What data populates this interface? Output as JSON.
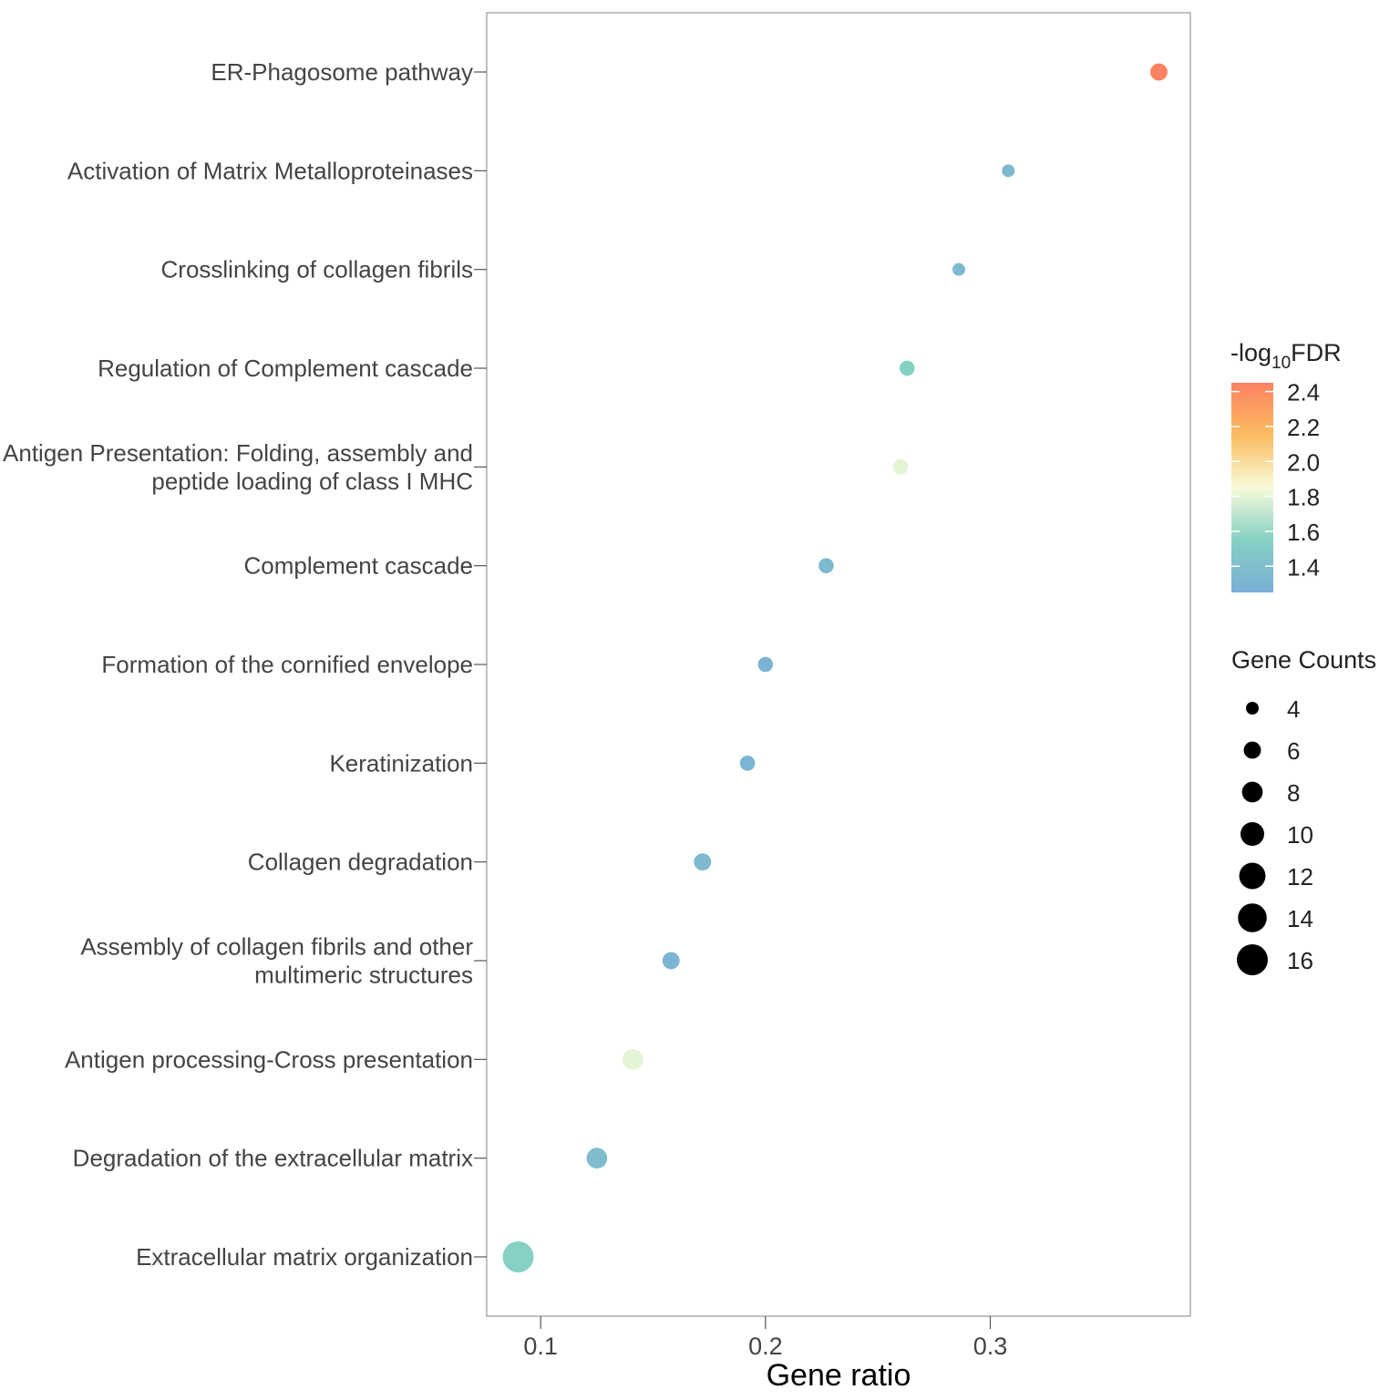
{
  "chart_data": {
    "type": "scatter",
    "xlabel": "Gene ratio",
    "xlim": [
      0.076,
      0.389
    ],
    "xticks": [
      0.1,
      0.2,
      0.3
    ],
    "xtick_labels": [
      "0.1",
      "0.2",
      "0.3"
    ],
    "points": [
      {
        "label": [
          "ER-Phagosome pathway"
        ],
        "gene_ratio": 0.375,
        "count": 6,
        "neg_log10_fdr": 2.45
      },
      {
        "label": [
          "Activation of Matrix Metalloproteinases"
        ],
        "gene_ratio": 0.308,
        "count": 4,
        "neg_log10_fdr": 1.35
      },
      {
        "label": [
          "Crosslinking of collagen fibrils"
        ],
        "gene_ratio": 0.286,
        "count": 4,
        "neg_log10_fdr": 1.35
      },
      {
        "label": [
          "Regulation of Complement cascade"
        ],
        "gene_ratio": 0.263,
        "count": 5,
        "neg_log10_fdr": 1.55
      },
      {
        "label": [
          "Antigen Presentation: Folding, assembly and",
          "peptide loading of class I MHC"
        ],
        "gene_ratio": 0.26,
        "count": 5,
        "neg_log10_fdr": 1.8
      },
      {
        "label": [
          "Complement cascade"
        ],
        "gene_ratio": 0.227,
        "count": 5,
        "neg_log10_fdr": 1.35
      },
      {
        "label": [
          "Formation of the cornified envelope"
        ],
        "gene_ratio": 0.2,
        "count": 5,
        "neg_log10_fdr": 1.3
      },
      {
        "label": [
          "Keratinization"
        ],
        "gene_ratio": 0.192,
        "count": 5,
        "neg_log10_fdr": 1.3
      },
      {
        "label": [
          "Collagen degradation"
        ],
        "gene_ratio": 0.172,
        "count": 6,
        "neg_log10_fdr": 1.35
      },
      {
        "label": [
          "Assembly of collagen fibrils and other",
          "multimeric structures"
        ],
        "gene_ratio": 0.158,
        "count": 6,
        "neg_log10_fdr": 1.3
      },
      {
        "label": [
          "Antigen processing-Cross presentation"
        ],
        "gene_ratio": 0.141,
        "count": 8,
        "neg_log10_fdr": 1.8
      },
      {
        "label": [
          "Degradation of the extracellular matrix"
        ],
        "gene_ratio": 0.125,
        "count": 8,
        "neg_log10_fdr": 1.38
      },
      {
        "label": [
          "Extracellular matrix organization"
        ],
        "gene_ratio": 0.09,
        "count": 16,
        "neg_log10_fdr": 1.55
      }
    ],
    "color_legend": {
      "title_prefix": "-log",
      "title_sub": "10",
      "title_suffix": "FDR",
      "min": 1.25,
      "max": 2.45,
      "ticks": [
        1.4,
        1.6,
        1.8,
        2.0,
        2.2,
        2.4
      ],
      "tick_labels": [
        "1.4",
        "1.6",
        "1.8",
        "2.0",
        "2.2",
        "2.4"
      ],
      "colors": [
        "#7aaed6",
        "#86d0c4",
        "#f7fbd9",
        "#fbbc60",
        "#fc8162"
      ]
    },
    "size_legend": {
      "title": "Gene Counts",
      "values": [
        4,
        6,
        8,
        10,
        12,
        14,
        16
      ],
      "labels": [
        "4",
        "6",
        "8",
        "10",
        "12",
        "14",
        "16"
      ],
      "color": "#000000"
    }
  }
}
